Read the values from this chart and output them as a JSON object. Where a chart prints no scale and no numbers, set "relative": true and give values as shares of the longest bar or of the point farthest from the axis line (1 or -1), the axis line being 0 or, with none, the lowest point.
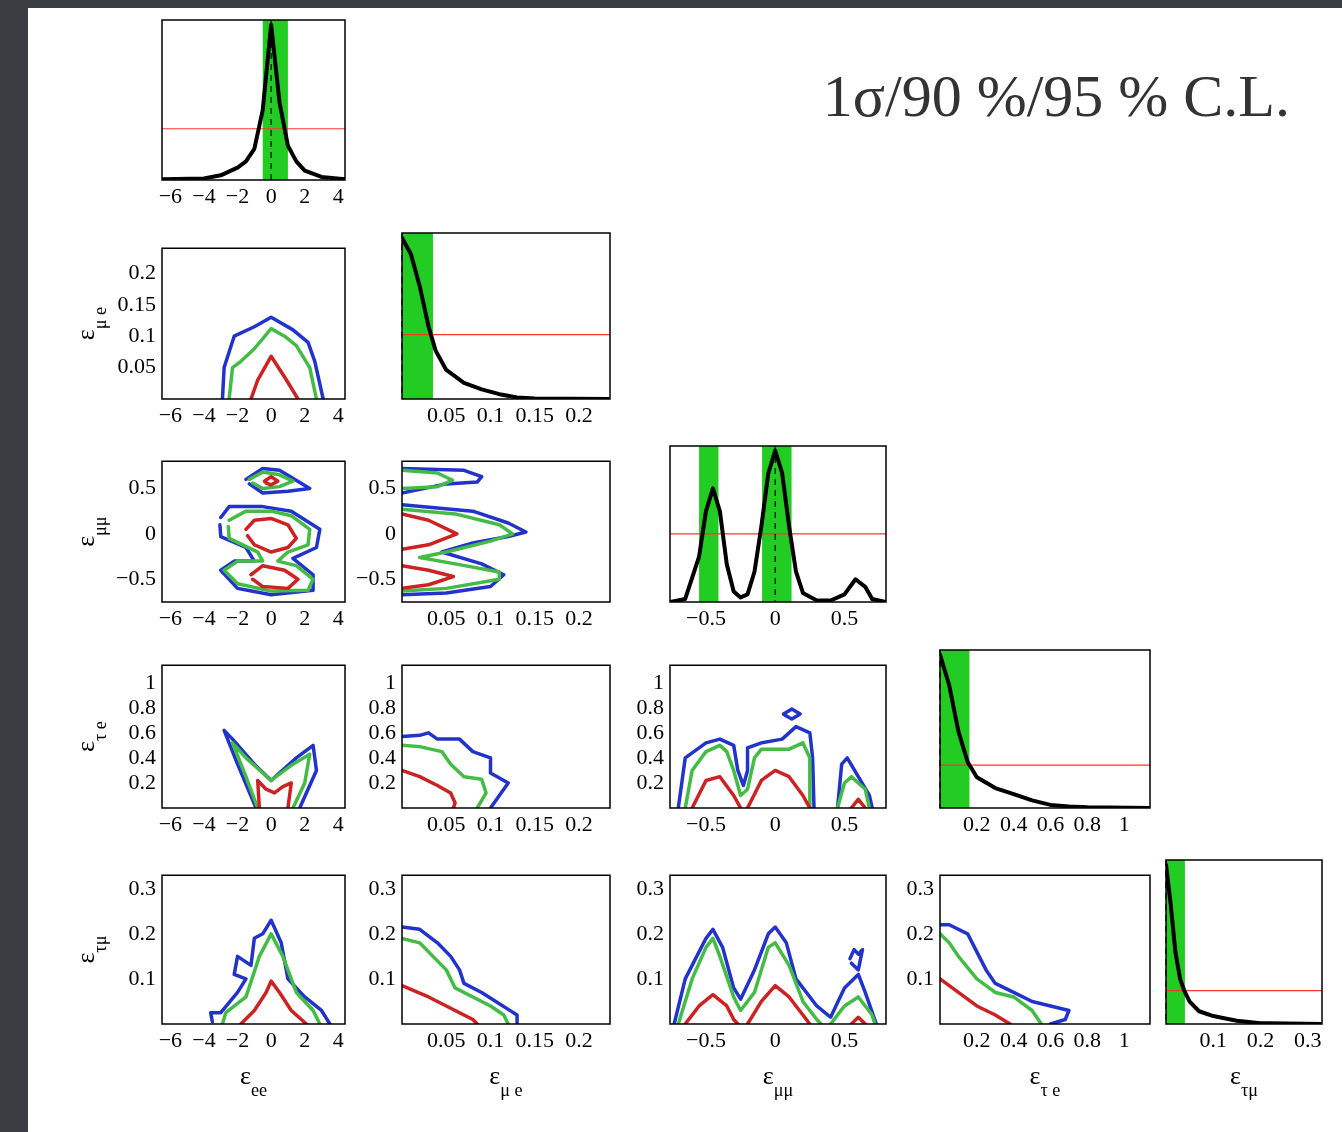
{
  "chart_data": [
    {
      "type": "line",
      "relative": true,
      "x": [
        -6.5,
        -4,
        -3,
        -2,
        -1.5,
        -1,
        -0.5,
        0,
        0.5,
        1,
        1.5,
        2,
        3,
        4.4
      ],
      "values": [
        0.005,
        0.01,
        0.03,
        0.08,
        0.12,
        0.2,
        0.45,
        1,
        0.5,
        0.22,
        0.12,
        0.06,
        0.02,
        0.005
      ],
      "color": "#000000",
      "xlim": [
        -6.5,
        4.4
      ],
      "xticks": [
        -6,
        -4,
        -2,
        0,
        2,
        4
      ],
      "bands": [
        {
          "axis": "x",
          "from": -0.5,
          "to": 1.0,
          "color": "#22cc22"
        }
      ],
      "ref_lines": [
        {
          "axis": "y",
          "value": 0.33,
          "color": "#ff3333"
        },
        {
          "axis": "x",
          "value": 0,
          "color": "#000000",
          "line_style": "dashed"
        }
      ]
    },
    {
      "type": "other",
      "title": "1σ/90 %/95 % C.L."
    },
    {
      "type": "line",
      "ylabel": "ε$_{μ e}$",
      "xlim": [
        -6.5,
        4.4
      ],
      "xticks": [
        -6,
        -4,
        -2,
        0,
        2,
        4
      ],
      "ylim": [
        0,
        0.24
      ],
      "yticks": [
        0.05,
        0.1,
        0.15,
        0.2
      ],
      "series": [
        {
          "color": "#cc2222",
          "x": [
            -1.2,
            -0.8,
            0,
            0.8,
            1.6
          ],
          "values": [
            0,
            0.03,
            0.068,
            0.035,
            0
          ]
        },
        {
          "color": "#44bb44",
          "x": [
            -2.5,
            -2.3,
            -1.8,
            -1,
            0,
            0.8,
            1.5,
            2.3,
            2.7
          ],
          "values": [
            0,
            0.05,
            0.06,
            0.08,
            0.112,
            0.1,
            0.085,
            0.05,
            0
          ]
        },
        {
          "color": "#2233cc",
          "x": [
            -2.9,
            -2.8,
            -2.2,
            -1,
            0,
            1.3,
            2.2,
            2.6,
            3.1
          ],
          "values": [
            0,
            0.05,
            0.1,
            0.115,
            0.13,
            0.11,
            0.09,
            0.06,
            0
          ]
        }
      ]
    },
    {
      "type": "line",
      "relative": true,
      "x": [
        0,
        0.01,
        0.02,
        0.03,
        0.038,
        0.05,
        0.07,
        0.09,
        0.11,
        0.13,
        0.15,
        0.235
      ],
      "values": [
        1,
        0.9,
        0.7,
        0.45,
        0.3,
        0.18,
        0.1,
        0.06,
        0.03,
        0.01,
        0.003,
        0
      ],
      "color": "#000000",
      "xlim": [
        0,
        0.235
      ],
      "xticks": [
        0.05,
        0.1,
        0.15,
        0.2
      ],
      "bands": [
        {
          "axis": "x",
          "from": 0,
          "to": 0.035,
          "color": "#22cc22"
        }
      ],
      "ref_lines": [
        {
          "axis": "y",
          "value": 0.4,
          "color": "#ff3333"
        },
        {
          "axis": "x",
          "value": 0,
          "color": "#000000",
          "line_style": "dashed"
        }
      ]
    },
    {
      "type": "line",
      "ylabel": "ε$_{μμ}$",
      "xlim": [
        -6.5,
        4.4
      ],
      "xticks": [
        -6,
        -4,
        -2,
        0,
        2,
        4
      ],
      "ylim": [
        -0.75,
        0.8
      ],
      "yticks": [
        -0.5,
        0,
        0.5
      ],
      "series": [
        {
          "color": "#cc2222",
          "x": [
            -0.4,
            0,
            0.4,
            0,
            -0.3
          ],
          "values": [
            0.58,
            0.63,
            0.58,
            0.54,
            0.56
          ]
        },
        {
          "color": "#cc2222",
          "x": [
            -1.5,
            -1,
            0,
            1,
            1.5,
            1,
            0,
            -1,
            -1.4
          ],
          "values": [
            0.05,
            0.15,
            0.17,
            0.1,
            -0.05,
            -0.15,
            -0.2,
            -0.12,
            -0.02
          ]
        },
        {
          "color": "#cc2222",
          "x": [
            -1.2,
            -0.5,
            0.8,
            1.6,
            1,
            -0.5,
            -1.1
          ],
          "values": [
            -0.45,
            -0.35,
            -0.4,
            -0.5,
            -0.6,
            -0.58,
            -0.5
          ]
        },
        {
          "color": "#44bb44",
          "x": [
            -1.3,
            -0.5,
            0.5,
            1.3,
            0.5,
            -0.5,
            -1.1
          ],
          "values": [
            0.6,
            0.68,
            0.65,
            0.58,
            0.52,
            0.5,
            0.56
          ]
        },
        {
          "color": "#44bb44",
          "x": [
            -2.5,
            -1.5,
            0,
            1.2,
            2.3,
            2.2,
            1,
            0.4,
            1.5,
            2.5,
            2.2,
            0,
            -2,
            -2.8,
            -2,
            -0.5,
            -0.8,
            -2.5,
            -2.55
          ],
          "values": [
            0.15,
            0.25,
            0.25,
            0.2,
            0.05,
            -0.12,
            -0.2,
            -0.3,
            -0.35,
            -0.5,
            -0.62,
            -0.63,
            -0.55,
            -0.4,
            -0.3,
            -0.3,
            -0.2,
            -0.05,
            0.08
          ]
        },
        {
          "color": "#2233cc",
          "x": [
            -1.5,
            -0.5,
            0.5,
            2.3,
            1,
            -0.5,
            -1.3
          ],
          "values": [
            0.6,
            0.72,
            0.7,
            0.5,
            0.47,
            0.45,
            0.55
          ]
        },
        {
          "color": "#2233cc",
          "x": [
            -3,
            -2.5,
            -0.5,
            1.2,
            2.9,
            2.7,
            1.3,
            2.5,
            2.5,
            0,
            -2,
            -3,
            -2.2,
            -1,
            -1.5,
            -3,
            -3.05
          ],
          "values": [
            0.18,
            0.3,
            0.3,
            0.25,
            0.05,
            -0.15,
            -0.27,
            -0.45,
            -0.62,
            -0.67,
            -0.6,
            -0.4,
            -0.3,
            -0.3,
            -0.15,
            -0.03,
            0.1
          ]
        }
      ]
    },
    {
      "type": "line",
      "xlim": [
        0,
        0.235
      ],
      "xticks": [
        0.05,
        0.1,
        0.15,
        0.2
      ],
      "ylim": [
        -0.75,
        0.8
      ],
      "yticks": [
        -0.5,
        0,
        0.5
      ],
      "series": [
        {
          "color": "#cc2222",
          "x": [
            0,
            0.03,
            0.062,
            0.03,
            0,
            null,
            0,
            0.03,
            0.058,
            0.03,
            0
          ],
          "values": [
            0.22,
            0.15,
            0,
            -0.12,
            -0.17,
            null,
            -0.35,
            -0.4,
            -0.47,
            -0.56,
            -0.6
          ]
        },
        {
          "color": "#44bb44",
          "x": [
            0,
            0.04,
            0.057,
            0.04,
            0,
            null,
            0,
            0.06,
            0.11,
            0.125,
            0.1,
            0.05,
            0.02,
            0.06,
            0.11,
            0.11,
            0.05,
            0
          ],
          "values": [
            0.7,
            0.67,
            0.59,
            0.52,
            0.5,
            null,
            0.27,
            0.22,
            0.1,
            0,
            -0.08,
            -0.2,
            -0.26,
            -0.33,
            -0.42,
            -0.5,
            -0.6,
            -0.63
          ]
        },
        {
          "color": "#2233cc",
          "x": [
            0,
            0.07,
            0.09,
            0.085,
            0.05,
            0,
            null,
            0,
            0.08,
            0.12,
            0.14,
            0.12,
            0.08,
            0.045,
            0.09,
            0.115,
            0.1,
            0.05,
            0
          ],
          "values": [
            0.72,
            0.7,
            0.63,
            0.57,
            0.55,
            0.45,
            null,
            0.32,
            0.25,
            0.12,
            0.02,
            -0.03,
            -0.1,
            -0.2,
            -0.33,
            -0.45,
            -0.58,
            -0.65,
            -0.67
          ]
        }
      ]
    },
    {
      "type": "line",
      "relative": true,
      "x": [
        -0.76,
        -0.65,
        -0.55,
        -0.5,
        -0.45,
        -0.4,
        -0.35,
        -0.3,
        -0.25,
        -0.2,
        -0.15,
        -0.1,
        -0.05,
        0,
        0.05,
        0.1,
        0.15,
        0.2,
        0.3,
        0.4,
        0.5,
        0.58,
        0.65,
        0.7,
        0.8
      ],
      "values": [
        0,
        0.02,
        0.3,
        0.6,
        0.75,
        0.6,
        0.25,
        0.07,
        0.03,
        0.05,
        0.2,
        0.5,
        0.85,
        1,
        0.85,
        0.5,
        0.2,
        0.06,
        0.01,
        0.01,
        0.05,
        0.15,
        0.1,
        0.02,
        0
      ],
      "color": "#000000",
      "xlim": [
        -0.76,
        0.8
      ],
      "xticks": [
        -0.5,
        0,
        0.5
      ],
      "bands": [
        {
          "axis": "x",
          "from": -0.55,
          "to": -0.41,
          "color": "#22cc22"
        },
        {
          "axis": "x",
          "from": -0.095,
          "to": 0.118,
          "color": "#22cc22"
        }
      ],
      "ref_lines": [
        {
          "axis": "y",
          "value": 0.45,
          "color": "#ff3333"
        },
        {
          "axis": "x",
          "value": 0,
          "color": "#000000",
          "line_style": "dashed"
        }
      ]
    },
    {
      "type": "line",
      "ylabel": "ε$_{τ e}$",
      "xlim": [
        -6.5,
        4.4
      ],
      "xticks": [
        -6,
        -4,
        -2,
        0,
        2,
        4
      ],
      "ylim": [
        0,
        1.14
      ],
      "yticks": [
        0.2,
        0.4,
        0.6,
        0.8,
        1
      ],
      "series": [
        {
          "color": "#cc2222",
          "x": [
            -0.7,
            -0.8,
            -0.3,
            0.2,
            0.7,
            1.2,
            1
          ],
          "values": [
            0,
            0.22,
            0.15,
            0.12,
            0.17,
            0.2,
            0
          ]
        },
        {
          "color": "#44bb44",
          "x": [
            -0.8,
            -1.5,
            -2.3,
            -1.5,
            0,
            1.3,
            2.3,
            2,
            1.3
          ],
          "values": [
            0,
            0.25,
            0.52,
            0.4,
            0.22,
            0.35,
            0.43,
            0.2,
            0
          ]
        },
        {
          "color": "#2233cc",
          "x": [
            -0.9,
            -2,
            -2.8,
            -2.3,
            -1,
            0,
            1.5,
            2.5,
            2.7,
            1.7
          ],
          "values": [
            0,
            0.35,
            0.62,
            0.55,
            0.35,
            0.22,
            0.4,
            0.5,
            0.3,
            0
          ]
        }
      ]
    },
    {
      "type": "line",
      "xlim": [
        0,
        0.235
      ],
      "xticks": [
        0.05,
        0.1,
        0.15,
        0.2
      ],
      "ylim": [
        0,
        1.14
      ],
      "yticks": [
        0.2,
        0.4,
        0.6,
        0.8,
        1
      ],
      "series": [
        {
          "color": "#cc2222",
          "x": [
            0,
            0.02,
            0.04,
            0.055,
            0.06,
            0.058
          ],
          "values": [
            0.3,
            0.25,
            0.18,
            0.12,
            0.04,
            0
          ]
        },
        {
          "color": "#44bb44",
          "x": [
            0,
            0.02,
            0.045,
            0.055,
            0.07,
            0.09,
            0.095,
            0.085
          ],
          "values": [
            0.5,
            0.49,
            0.45,
            0.35,
            0.25,
            0.23,
            0.12,
            0
          ]
        },
        {
          "color": "#2233cc",
          "x": [
            0,
            0.02,
            0.03,
            0.04,
            0.065,
            0.08,
            0.1,
            0.1,
            0.12,
            0.11,
            0.1
          ],
          "values": [
            0.57,
            0.58,
            0.6,
            0.55,
            0.55,
            0.45,
            0.4,
            0.28,
            0.2,
            0.1,
            0
          ]
        }
      ]
    },
    {
      "type": "line",
      "xlim": [
        -0.76,
        0.8
      ],
      "xticks": [
        -0.5,
        0,
        0.5
      ],
      "ylim": [
        0,
        1.14
      ],
      "yticks": [
        0.2,
        0.4,
        0.6,
        0.8,
        1
      ],
      "series": [
        {
          "color": "#cc2222",
          "x": [
            -0.6,
            -0.5,
            -0.4,
            -0.3,
            -0.25,
            null,
            -0.2,
            -0.1,
            0,
            0.1,
            0.2,
            0.25,
            null,
            0.55,
            0.6,
            0.65
          ],
          "values": [
            0,
            0.22,
            0.25,
            0.1,
            0,
            null,
            0,
            0.22,
            0.3,
            0.25,
            0.1,
            0,
            null,
            0,
            0.07,
            0
          ]
        },
        {
          "color": "#44bb44",
          "x": [
            -0.65,
            -0.6,
            -0.5,
            -0.4,
            -0.35,
            -0.3,
            -0.25,
            -0.2,
            -0.15,
            -0.1,
            0.1,
            0.2,
            0.25,
            0.25,
            null,
            0.45,
            0.5,
            0.55,
            0.65,
            0.68
          ],
          "values": [
            0,
            0.3,
            0.45,
            0.5,
            0.45,
            0.3,
            0.1,
            0.15,
            0.4,
            0.47,
            0.47,
            0.52,
            0.4,
            0,
            null,
            0,
            0.2,
            0.25,
            0.15,
            0
          ]
        },
        {
          "color": "#2233cc",
          "x": [
            -0.7,
            -0.65,
            -0.5,
            -0.4,
            -0.3,
            -0.27,
            -0.23,
            -0.2,
            -0.2,
            -0.1,
            0.05,
            0.15,
            0.25,
            0.27,
            0.28,
            null,
            0.45,
            0.48,
            0.52,
            0.6,
            0.68,
            0.7
          ],
          "values": [
            0,
            0.4,
            0.52,
            0.55,
            0.5,
            0.3,
            0.18,
            0.3,
            0.48,
            0.52,
            0.55,
            0.65,
            0.6,
            0.4,
            0,
            null,
            0,
            0.35,
            0.4,
            0.25,
            0.1,
            0
          ]
        },
        {
          "color": "#2233cc",
          "x": [
            0.06,
            0.12,
            0.18,
            0.12,
            0.07
          ],
          "values": [
            0.75,
            0.79,
            0.75,
            0.71,
            0.74
          ]
        }
      ]
    },
    {
      "type": "line",
      "relative": true,
      "x": [
        0,
        0.05,
        0.1,
        0.15,
        0.2,
        0.3,
        0.4,
        0.5,
        0.6,
        0.7,
        0.8,
        1.14
      ],
      "values": [
        1,
        0.8,
        0.5,
        0.3,
        0.2,
        0.13,
        0.09,
        0.05,
        0.02,
        0.01,
        0.005,
        0
      ],
      "color": "#000000",
      "xlim": [
        0,
        1.14
      ],
      "xticks": [
        0.2,
        0.4,
        0.6,
        0.8,
        1
      ],
      "bands": [
        {
          "axis": "x",
          "from": 0,
          "to": 0.16,
          "color": "#22cc22"
        }
      ],
      "ref_lines": [
        {
          "axis": "y",
          "value": 0.28,
          "color": "#ff3333"
        },
        {
          "axis": "x",
          "value": 0,
          "color": "#000000",
          "line_style": "dashed"
        }
      ]
    },
    {
      "type": "line",
      "xlabel": "ε$_{ee}$",
      "ylabel": "ε$_{τμ}$",
      "xlim": [
        -6.5,
        4.4
      ],
      "xticks": [
        -6,
        -4,
        -2,
        0,
        2,
        4
      ],
      "ylim": [
        0,
        0.33
      ],
      "yticks": [
        0.1,
        0.2,
        0.3
      ],
      "series": [
        {
          "color": "#cc2222",
          "x": [
            -1.8,
            -1,
            -0.3,
            0,
            0.5,
            1.2,
            2.1
          ],
          "values": [
            0,
            0.03,
            0.07,
            0.095,
            0.07,
            0.03,
            0
          ]
        },
        {
          "color": "#44bb44",
          "x": [
            -2.9,
            -2.7,
            -1.5,
            -0.7,
            0,
            0.7,
            1.5,
            2.5,
            2.9
          ],
          "values": [
            0,
            0.025,
            0.06,
            0.15,
            0.2,
            0.15,
            0.07,
            0.03,
            0
          ]
        },
        {
          "color": "#2233cc",
          "x": [
            -3.5,
            -3.6,
            -3,
            -2,
            -1.5,
            -2.2,
            -2,
            -1.2,
            -1,
            -0.5,
            0,
            0.6,
            1,
            2,
            3,
            3.5
          ],
          "values": [
            0.005,
            0.025,
            0.025,
            0.07,
            0.1,
            0.11,
            0.15,
            0.13,
            0.19,
            0.2,
            0.23,
            0.18,
            0.1,
            0.06,
            0.03,
            0
          ]
        }
      ]
    },
    {
      "type": "line",
      "xlabel": "ε$_{μ e}$",
      "xlim": [
        0,
        0.235
      ],
      "xticks": [
        0.05,
        0.1,
        0.15,
        0.2
      ],
      "ylim": [
        0,
        0.33
      ],
      "yticks": [
        0.1,
        0.2,
        0.3
      ],
      "series": [
        {
          "color": "#cc2222",
          "x": [
            0,
            0.03,
            0.06,
            0.08,
            0.085
          ],
          "values": [
            0.085,
            0.06,
            0.03,
            0.01,
            0
          ]
        },
        {
          "color": "#44bb44",
          "x": [
            0,
            0.02,
            0.035,
            0.05,
            0.06,
            0.08,
            0.1,
            0.115,
            0.12
          ],
          "values": [
            0.19,
            0.18,
            0.15,
            0.12,
            0.08,
            0.06,
            0.04,
            0.02,
            0
          ]
        },
        {
          "color": "#2233cc",
          "x": [
            0,
            0.02,
            0.04,
            0.055,
            0.065,
            0.07,
            0.09,
            0.11,
            0.13,
            0.13
          ],
          "values": [
            0.215,
            0.21,
            0.18,
            0.15,
            0.12,
            0.09,
            0.07,
            0.045,
            0.02,
            0
          ]
        }
      ]
    },
    {
      "type": "line",
      "xlabel": "ε$_{μμ}$",
      "xlim": [
        -0.76,
        0.8
      ],
      "xticks": [
        -0.5,
        0,
        0.5
      ],
      "ylim": [
        0,
        0.33
      ],
      "yticks": [
        0.1,
        0.2,
        0.3
      ],
      "series": [
        {
          "color": "#cc2222",
          "x": [
            -0.65,
            -0.55,
            -0.45,
            -0.35,
            -0.3,
            -0.27,
            null,
            -0.2,
            -0.1,
            0,
            0.1,
            0.2,
            0.25,
            null,
            0.55,
            0.6,
            0.65
          ],
          "values": [
            0,
            0.04,
            0.065,
            0.04,
            0.01,
            0,
            null,
            0,
            0.05,
            0.085,
            0.06,
            0.02,
            0,
            null,
            0,
            0.015,
            0
          ]
        },
        {
          "color": "#44bb44",
          "x": [
            -0.7,
            -0.6,
            -0.5,
            -0.45,
            -0.4,
            -0.3,
            -0.25,
            -0.15,
            -0.05,
            0,
            0.1,
            0.2,
            0.3,
            0.33,
            null,
            0.4,
            0.5,
            0.6,
            0.7,
            0.72
          ],
          "values": [
            0,
            0.1,
            0.17,
            0.19,
            0.15,
            0.06,
            0.03,
            0.07,
            0.17,
            0.18,
            0.13,
            0.05,
            0.01,
            0,
            null,
            0,
            0.04,
            0.06,
            0.02,
            0
          ]
        },
        {
          "color": "#2233cc",
          "x": [
            -0.73,
            -0.65,
            -0.5,
            -0.45,
            -0.38,
            -0.3,
            -0.25,
            -0.15,
            -0.05,
            0,
            0.08,
            0.15,
            0.3,
            0.4,
            0.5,
            0.6,
            0.65,
            0.73
          ],
          "values": [
            0,
            0.1,
            0.19,
            0.21,
            0.17,
            0.08,
            0.055,
            0.12,
            0.2,
            0.215,
            0.18,
            0.1,
            0.04,
            0.015,
            0.08,
            0.11,
            0.07,
            0
          ]
        },
        {
          "color": "#2233cc",
          "x": [
            0.54,
            0.57,
            0.6,
            0.63,
            0.6,
            0.55
          ],
          "values": [
            0.145,
            0.165,
            0.155,
            0.165,
            0.12,
            0.135
          ]
        }
      ]
    },
    {
      "type": "line",
      "xlabel": "ε$_{τ e}$",
      "xlim": [
        0,
        1.14
      ],
      "xticks": [
        0.2,
        0.4,
        0.6,
        0.8,
        1
      ],
      "ylim": [
        0,
        0.33
      ],
      "yticks": [
        0.1,
        0.2,
        0.3
      ],
      "series": [
        {
          "color": "#cc2222",
          "x": [
            0,
            0.1,
            0.2,
            0.3,
            0.38
          ],
          "values": [
            0.1,
            0.07,
            0.04,
            0.02,
            0
          ]
        },
        {
          "color": "#44bb44",
          "x": [
            0,
            0.05,
            0.1,
            0.2,
            0.3,
            0.4,
            0.5,
            0.55
          ],
          "values": [
            0.2,
            0.18,
            0.15,
            0.1,
            0.07,
            0.06,
            0.03,
            0
          ]
        },
        {
          "color": "#2233cc",
          "x": [
            0,
            0.05,
            0.15,
            0.2,
            0.25,
            0.3,
            0.4,
            0.5,
            0.6,
            0.7,
            0.68,
            0.6
          ],
          "values": [
            0.22,
            0.22,
            0.2,
            0.16,
            0.12,
            0.09,
            0.07,
            0.05,
            0.04,
            0.03,
            0.01,
            0
          ]
        }
      ]
    },
    {
      "type": "line",
      "relative": true,
      "xlabel": "ε$_{τμ}$",
      "x": [
        0,
        0.01,
        0.02,
        0.03,
        0.04,
        0.05,
        0.07,
        0.1,
        0.15,
        0.2,
        0.33
      ],
      "values": [
        1,
        0.75,
        0.45,
        0.28,
        0.2,
        0.14,
        0.08,
        0.05,
        0.02,
        0.005,
        0
      ],
      "color": "#000000",
      "xlim": [
        0,
        0.33
      ],
      "xticks": [
        0.1,
        0.2,
        0.3
      ],
      "bands": [
        {
          "axis": "x",
          "from": 0,
          "to": 0.04,
          "color": "#22cc22"
        }
      ],
      "ref_lines": [
        {
          "axis": "y",
          "value": 0.21,
          "color": "#ff3333"
        },
        {
          "axis": "x",
          "value": 0,
          "color": "#000000",
          "line_style": "dashed"
        }
      ]
    }
  ]
}
